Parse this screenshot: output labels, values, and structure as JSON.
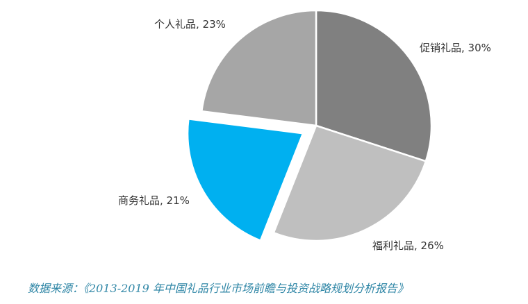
{
  "chart_data": {
    "type": "pie",
    "categories": [
      "促销礼品",
      "福利礼品",
      "商务礼品",
      "个人礼品"
    ],
    "values": [
      30,
      26,
      21,
      23
    ],
    "unit": "%",
    "colors": [
      "#808080",
      "#bfbfbf",
      "#00b0f0",
      "#a6a6a6"
    ],
    "exploded": "商务礼品",
    "labels": [
      "促销礼品, 30%",
      "福利礼品, 26%",
      "商务礼品, 21%",
      "个人礼品, 23%"
    ]
  },
  "source_note": "数据来源：《2013-2019 年中国礼品行业市场前瞻与投资战略规划分析报告》"
}
